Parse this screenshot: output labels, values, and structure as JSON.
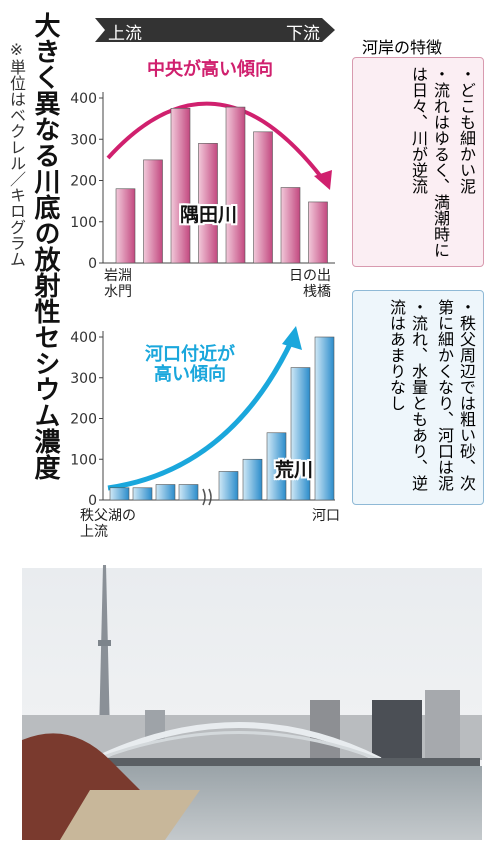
{
  "title": "大きく異なる川底の放射性セシウム濃度",
  "note": "※単位はベクレル／キログラム",
  "flow": {
    "upstream": "上流",
    "downstream": "下流"
  },
  "features": {
    "heading": "河岸の特徴",
    "sumida": [
      "・どこも細かい泥",
      "・流れはゆるく、満潮時には日々、川が逆流"
    ],
    "arakawa": [
      "・秩父周辺では粗い砂、次第に細かくなり、河口は泥",
      "・流れ、水量ともあり、逆流はあまりなし"
    ]
  },
  "chart_data": [
    {
      "type": "bar",
      "name": "隅田川",
      "annotation": "中央が高い傾向",
      "color": "#c2487f",
      "categories": [
        "岩淵水門",
        null,
        null,
        null,
        null,
        null,
        null,
        "日の出桟橋"
      ],
      "values": [
        180,
        250,
        375,
        290,
        378,
        318,
        183,
        148
      ],
      "ylim": [
        0,
        400
      ],
      "yticks": [
        0,
        100,
        200,
        300,
        400
      ],
      "grid": false
    },
    {
      "type": "bar",
      "name": "荒川",
      "annotation": "河口付近が高い傾向",
      "color": "#2b8ccb",
      "categories": [
        "秩父湖の上流",
        null,
        null,
        null,
        null,
        null,
        null,
        null,
        "河口"
      ],
      "values": [
        30,
        30,
        38,
        38,
        70,
        100,
        165,
        325,
        400
      ],
      "ylim": [
        0,
        400
      ],
      "yticks": [
        0,
        100,
        200,
        300,
        400
      ],
      "grid": false
    }
  ]
}
